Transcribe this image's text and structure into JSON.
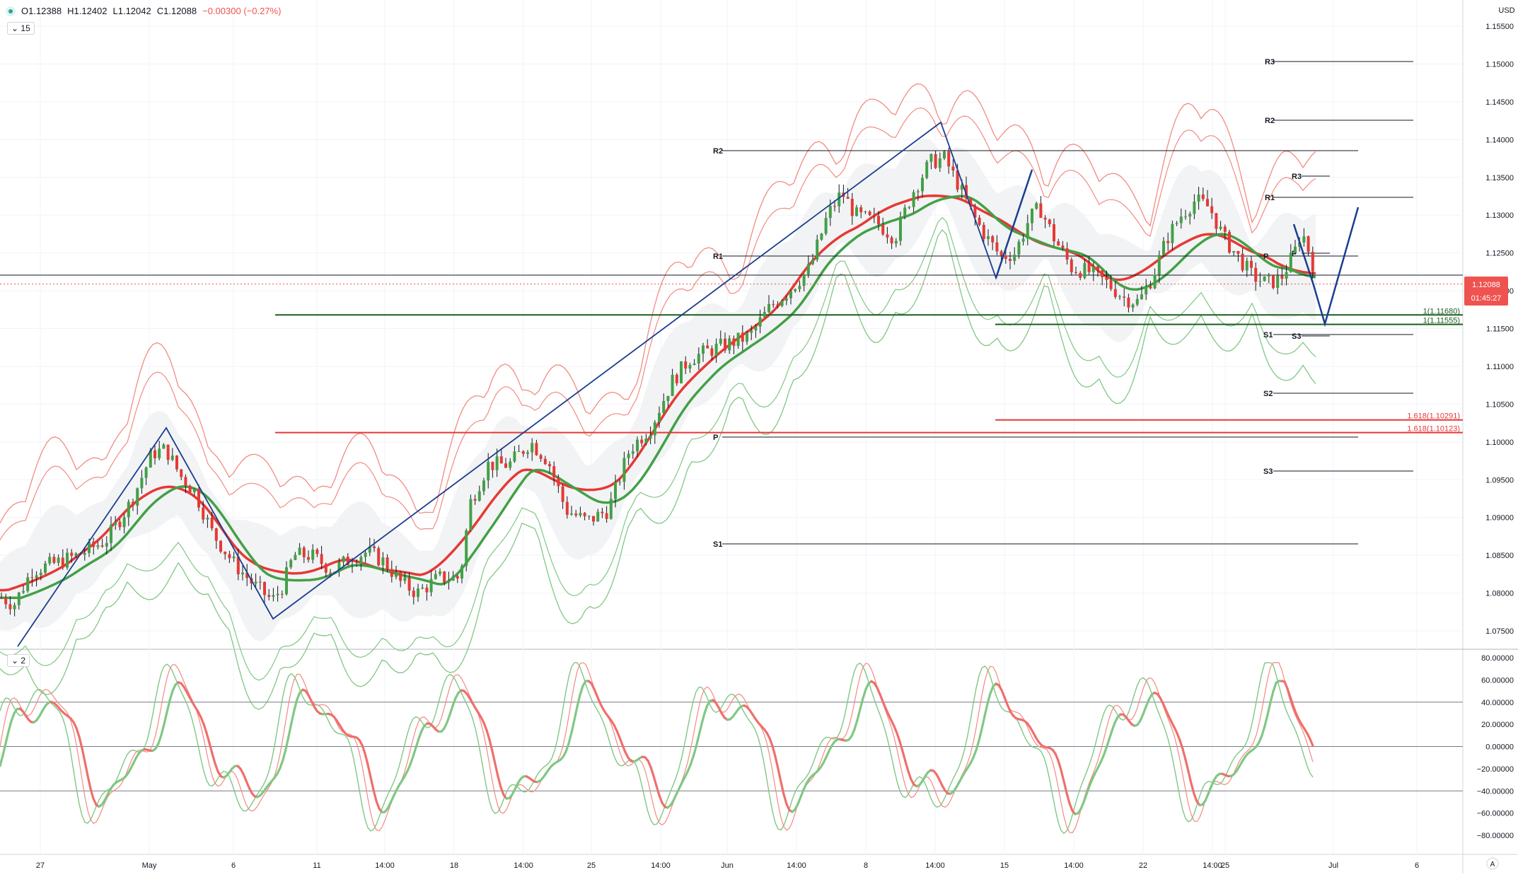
{
  "legend": {
    "open": "O1.12388",
    "high": "H1.12402",
    "low": "L1.12042",
    "close": "C1.12088",
    "change": "−0.00300 (−0.27%)",
    "interval_label": "15",
    "osc_label": "2"
  },
  "price_axis": {
    "currency": "USD",
    "ticks": [
      "1.15500",
      "1.15000",
      "1.14500",
      "1.14000",
      "1.13500",
      "1.13000",
      "1.12500",
      "1.12000",
      "1.11500",
      "1.11000",
      "1.10500",
      "1.10000",
      "1.09500",
      "1.09000",
      "1.08500",
      "1.08000",
      "1.07500"
    ],
    "current_price": "1.12088",
    "countdown": "01:45:27"
  },
  "osc_axis": {
    "ticks": [
      "80.00000",
      "60.00000",
      "40.00000",
      "20.00000",
      "0.00000",
      "−20.00000",
      "−40.00000",
      "−60.00000",
      "−80.00000"
    ]
  },
  "time_axis": {
    "labels": [
      "27",
      "May",
      "6",
      "11",
      "14:00",
      "18",
      "14:00",
      "25",
      "14:00",
      "Jun",
      "14:00",
      "8",
      "14:00",
      "15",
      "14:00",
      "22",
      "14:00",
      "25",
      "Jul",
      "6"
    ],
    "corner": "A"
  },
  "levels": [
    {
      "label": "R3",
      "price": "1.15000"
    },
    {
      "label": "R2",
      "price": "1.14250"
    },
    {
      "label": "R2",
      "price": "1.13850"
    },
    {
      "label": "R3",
      "price": "1.13500"
    },
    {
      "label": "R1",
      "price": "1.13200"
    },
    {
      "label": "R1",
      "price": "1.12450"
    },
    {
      "label": "P",
      "price": "1.12450"
    },
    {
      "label": "P",
      "price": "1.12480"
    },
    {
      "label": "S1",
      "price": "1.11400"
    },
    {
      "label": "S3",
      "price": "1.11400"
    },
    {
      "label": "S2",
      "price": "1.10650"
    },
    {
      "label": "P",
      "price": "1.10050"
    },
    {
      "label": "S3",
      "price": "1.09620"
    },
    {
      "label": "S1",
      "price": "1.08650"
    }
  ],
  "fib_labels": [
    {
      "text": "1(1.11680)",
      "price": 1.1168,
      "color": "#1b5e20"
    },
    {
      "text": "1(1.11555)",
      "price": 1.11555,
      "color": "#1b5e20"
    },
    {
      "text": "1.618(1.10291)",
      "price": 1.10291,
      "color": "#e53935"
    },
    {
      "text": "1.618(1.10123)",
      "price": 1.10123,
      "color": "#e53935"
    }
  ],
  "colors": {
    "up": "#26a69a",
    "down": "#ef5350",
    "candle_up": "#43a047",
    "candle_down": "#e53935",
    "red_ma": "#e53935",
    "green_ma": "#43a047",
    "band_red": "#f28b82",
    "band_green": "#81c784",
    "pattern": "#1a3e8f",
    "last_price_bg": "#ef5350"
  },
  "chart_data": {
    "type": "line",
    "title": "",
    "y_range": [
      1.0715,
      1.1575
    ],
    "pattern_line": [
      {
        "x": "Apr 27",
        "y": 1.0733
      },
      {
        "x": "May 1",
        "y": 1.1018
      },
      {
        "x": "May 7",
        "y": 1.077
      },
      {
        "x": "Jun 10",
        "y": 1.142
      },
      {
        "x": "Jun 15",
        "y": 1.122
      },
      {
        "x": "Jun 16",
        "y": 1.1355
      },
      {
        "x": "Jun 16",
        "y": 1.1355
      }
    ],
    "projection": [
      {
        "x": "Jun 30",
        "y": 1.129
      },
      {
        "x": "Jun 30",
        "y": 1.1205
      },
      {
        "x": "Jul 1",
        "y": 1.116
      },
      {
        "x": "Jul 2",
        "y": 1.131
      }
    ],
    "oscillator": {
      "y_range": [
        -88,
        88
      ],
      "levels": [
        40,
        0,
        -40
      ]
    }
  }
}
